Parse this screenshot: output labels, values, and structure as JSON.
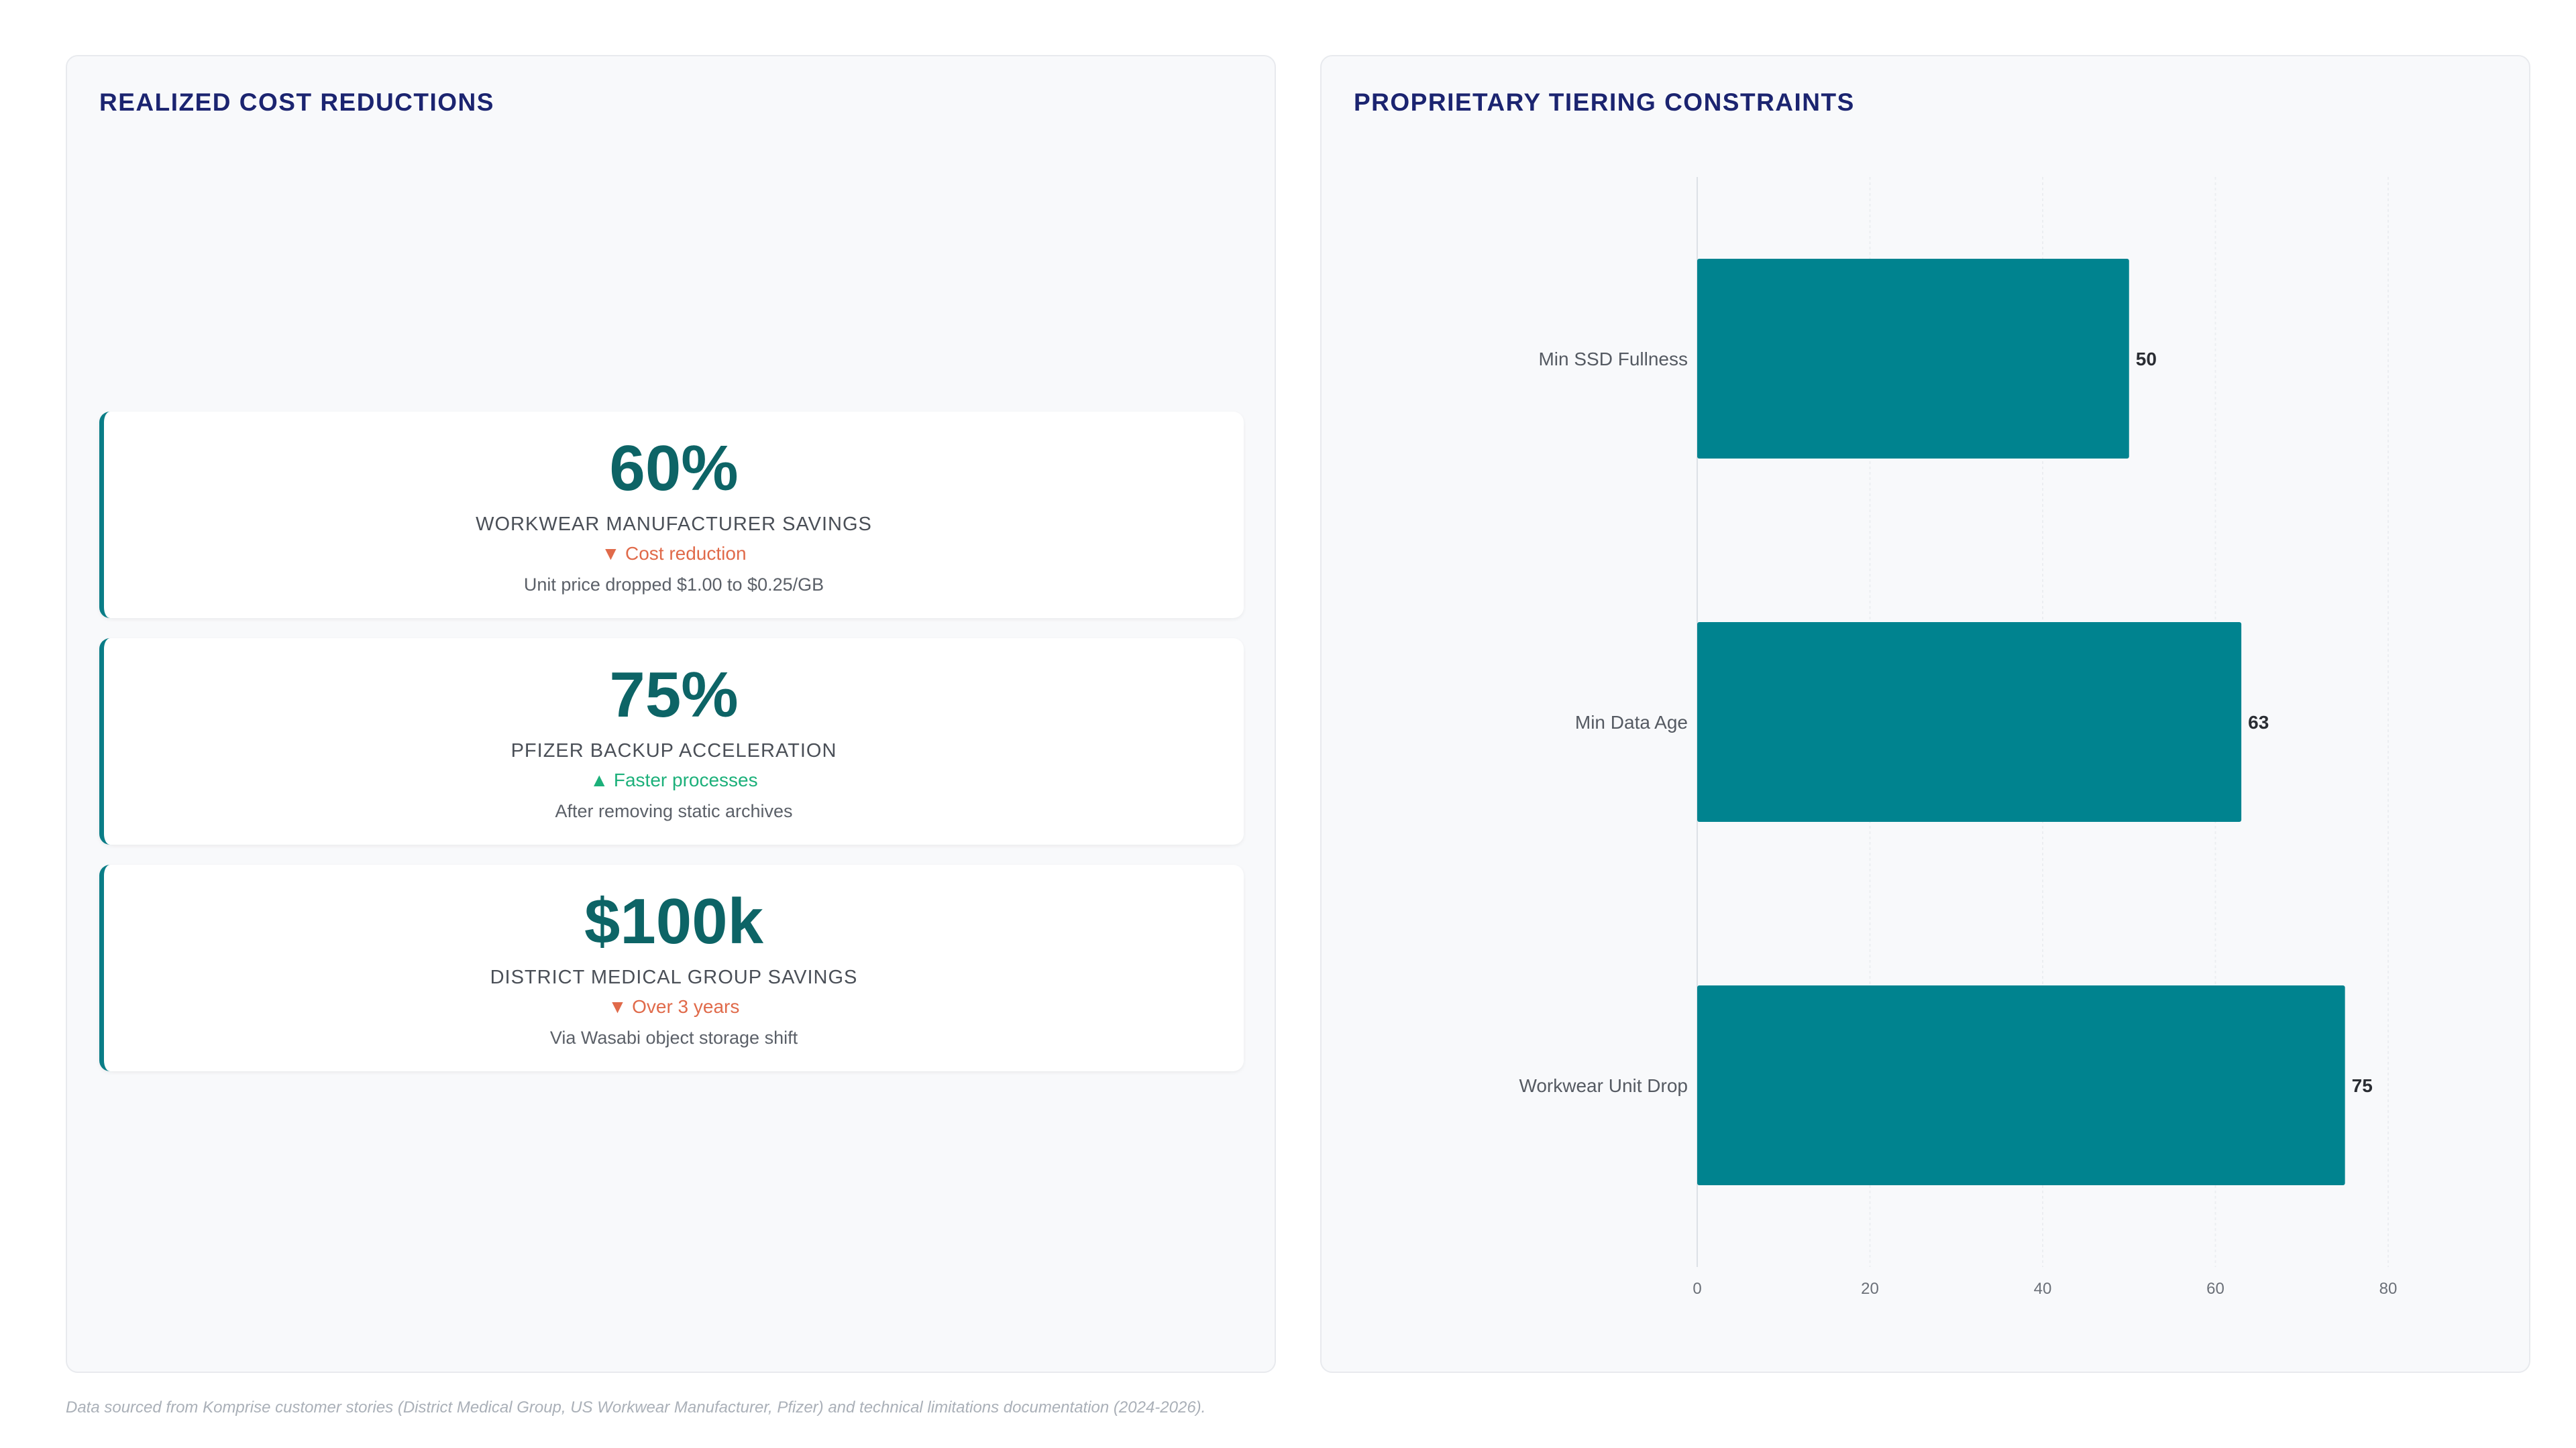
{
  "left_panel": {
    "title": "REALIZED COST REDUCTIONS",
    "cards": [
      {
        "value": "60%",
        "label": "WORKWEAR MANUFACTURER SAVINGS",
        "trend": "▼ Cost reduction",
        "trend_direction": "down",
        "note": "Unit price dropped $1.00 to $0.25/GB"
      },
      {
        "value": "75%",
        "label": "PFIZER BACKUP ACCELERATION",
        "trend": "▲ Faster processes",
        "trend_direction": "up",
        "note": "After removing static archives"
      },
      {
        "value": "$100k",
        "label": "DISTRICT MEDICAL GROUP SAVINGS",
        "trend": "▼ Over 3 years",
        "trend_direction": "down",
        "note": "Via Wasabi object storage shift"
      }
    ]
  },
  "right_panel": {
    "title": "PROPRIETARY TIERING CONSTRAINTS"
  },
  "chart_data": {
    "type": "bar",
    "orientation": "horizontal",
    "categories": [
      "Min SSD Fullness",
      "Min Data Age",
      "Workwear Unit Drop"
    ],
    "values": [
      50,
      63,
      75
    ],
    "xlim": [
      0,
      80
    ],
    "xticks": [
      0,
      20,
      40,
      60,
      80
    ],
    "grid": true,
    "bar_color": "#00838f",
    "title": "",
    "xlabel": "",
    "ylabel": ""
  },
  "colors": {
    "accent": "#0a7d87",
    "kpi_value": "#0d6466",
    "title": "#1b2470",
    "trend_down": "#e06a4a",
    "trend_up": "#1cb07a"
  },
  "footnote": "Data sourced from Komprise customer stories (District Medical Group, US Workwear Manufacturer, Pfizer) and technical limitations documentation (2024-2026)."
}
